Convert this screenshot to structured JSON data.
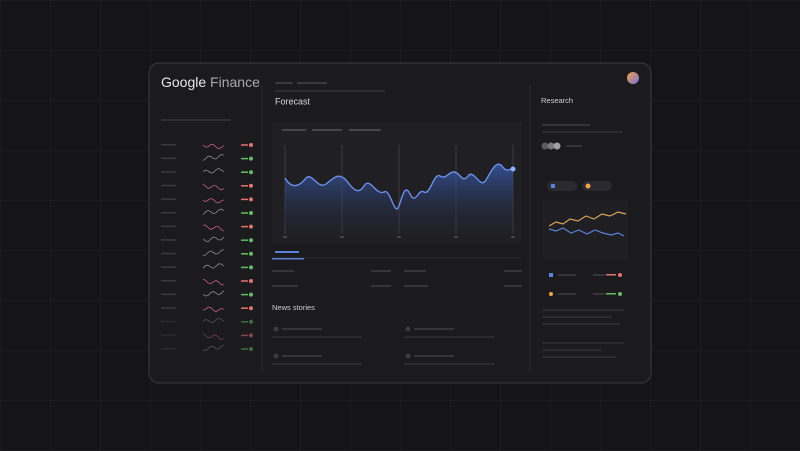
{
  "header": {
    "brand": "Google",
    "product": "Finance"
  },
  "main": {
    "section_title": "Forecast",
    "news_title": "News stories"
  },
  "research": {
    "title": "Research"
  }
}
